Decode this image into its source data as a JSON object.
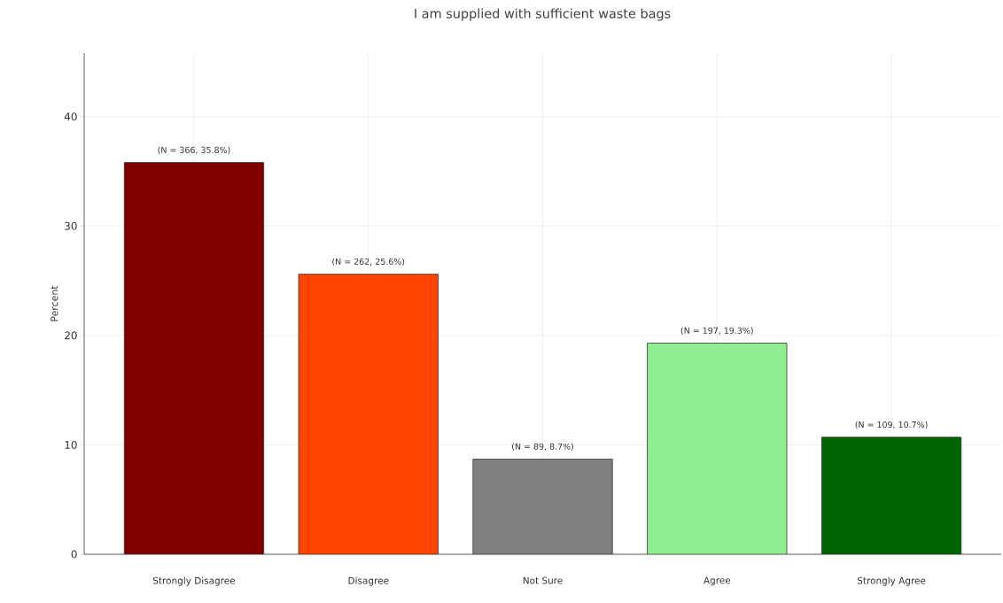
{
  "chart_data": {
    "type": "bar",
    "title": "I am supplied with sufficient waste bags",
    "ylabel": "Percent",
    "categories": [
      "Strongly Disagree",
      "Disagree",
      "Not Sure",
      "Agree",
      "Strongly Agree"
    ],
    "values": [
      35.8,
      25.6,
      8.7,
      19.3,
      10.7
    ],
    "colors": [
      "#800000",
      "#ff4500",
      "#808080",
      "#90ee90",
      "#006400"
    ],
    "value_labels": [
      "(N = 366, 35.8%)",
      "(N = 262, 25.6%)",
      "(N = 89, 8.7%)",
      "(N = 197, 19.3%)",
      "(N = 109, 10.7%)"
    ],
    "ylim": [
      0,
      45.8
    ],
    "yticks": [
      0,
      10,
      20,
      30,
      40
    ],
    "grid": true
  }
}
